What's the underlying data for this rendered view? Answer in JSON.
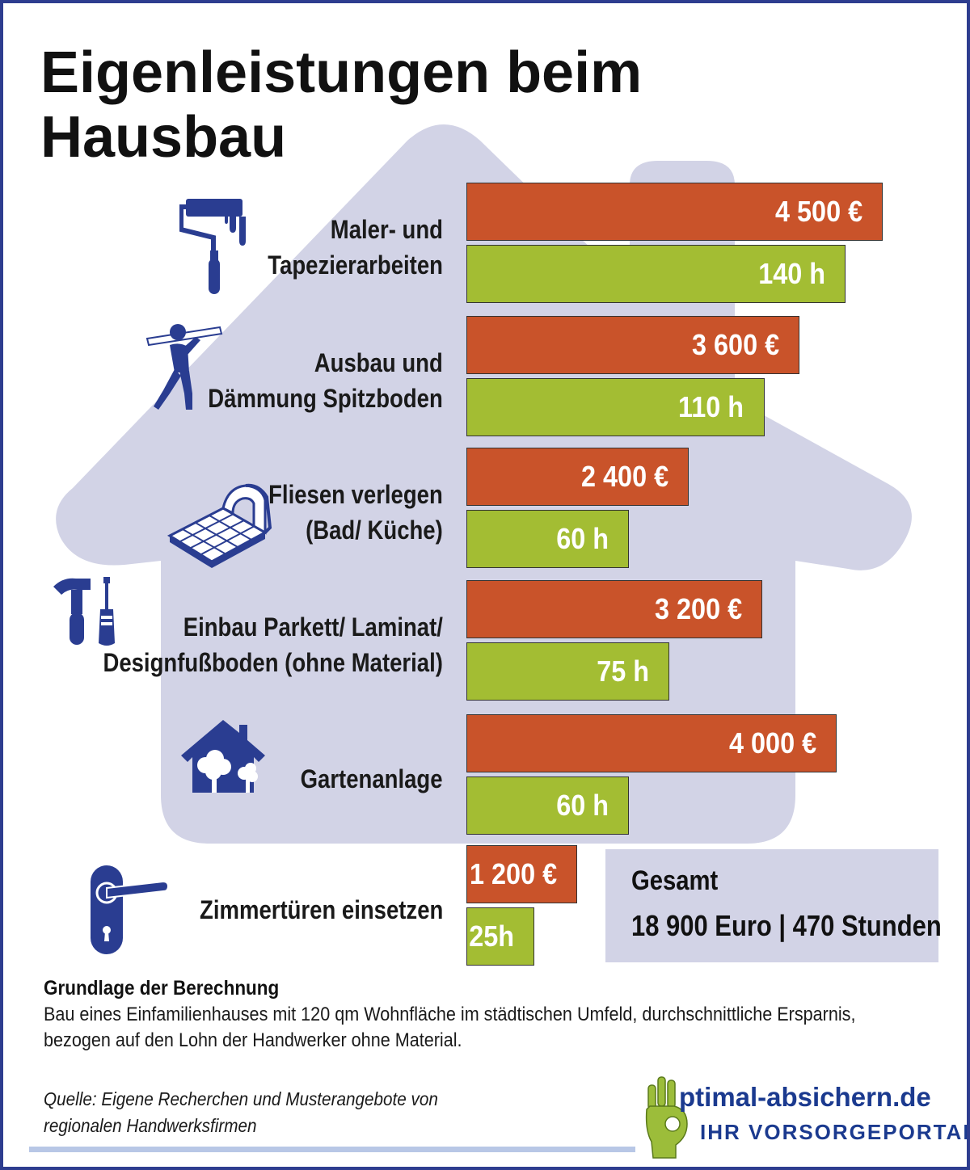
{
  "title": "Eigenleistungen beim Hausbau",
  "chart_data": {
    "type": "bar",
    "orientation": "horizontal",
    "categories": [
      "Maler- und Tapezierarbeiten",
      "Ausbau und Dämmung Spitzboden",
      "Fliesen verlegen (Bad/ Küche)",
      "Einbau Parkett/ Laminat/ Designfußboden  (ohne Material)",
      "Gartenanlage",
      "Zimmertüren einsetzen"
    ],
    "category_lines": [
      [
        "Maler- und",
        "Tapezierarbeiten"
      ],
      [
        "Ausbau und",
        "Dämmung Spitzboden"
      ],
      [
        "Fliesen verlegen",
        "(Bad/ Küche)"
      ],
      [
        "Einbau Parkett/ Laminat/",
        "Designfußboden  (ohne Material)"
      ],
      [
        "Gartenanlage"
      ],
      [
        "Zimmertüren einsetzen"
      ]
    ],
    "series": [
      {
        "unit": "€",
        "color": "#c9532a",
        "values": [
          4500,
          3600,
          2400,
          3200,
          4000,
          1200
        ],
        "labels": [
          "4 500 €",
          "3 600 €",
          "2 400 €",
          "3 200 €",
          "4 000 €",
          "1 200 €"
        ]
      },
      {
        "unit": "h",
        "color": "#a3bd33",
        "values": [
          140,
          110,
          60,
          75,
          60,
          25
        ],
        "labels": [
          "140 h",
          "110 h",
          "60 h",
          "75 h",
          "60 h",
          "25h"
        ]
      }
    ],
    "icons": [
      "paint-roller-icon",
      "worker-carrying-plank-icon",
      "floor-tiles-icon",
      "hammer-screwdriver-icon",
      "house-garden-icon",
      "door-handle-icon"
    ],
    "grid": false,
    "legend": "none"
  },
  "total": {
    "title": "Gesamt",
    "value": "18 900 Euro | 470 Stunden"
  },
  "basis": {
    "title": "Grundlage der Berechnung",
    "text": "Bau eines Einfamilienhauses mit 120 qm Wohnfläche im städtischen Umfeld, durchschnittliche Ersparnis, bezogen auf den Lohn der Handwerker ohne Material."
  },
  "source": "Quelle: Eigene Recherchen und Musterangebote von regionalen Handwerksfirmen",
  "logo": {
    "main": "ptimal-absichern.de",
    "sub": "IHR VORSORGEPORTAL"
  },
  "colors": {
    "frame": "#2d3d8f",
    "house": "#d2d3e6",
    "icon": "#2a3d91",
    "logo_hand": "#9cbd3a"
  }
}
